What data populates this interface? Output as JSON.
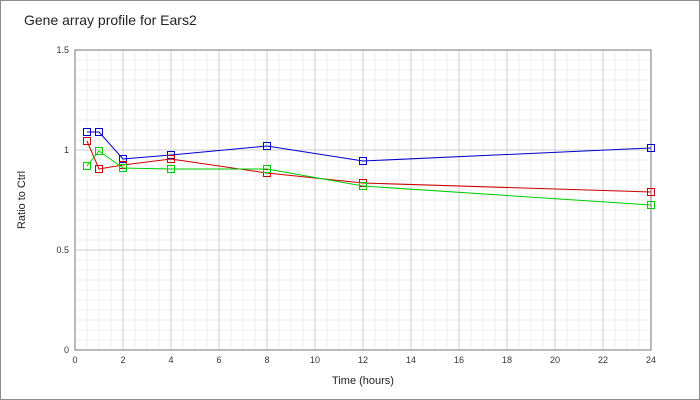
{
  "chart_data": {
    "type": "line",
    "title": "Gene array profile for Ears2",
    "xlabel": "Time (hours)",
    "ylabel": "Ratio to Ctrl",
    "xlim": [
      0,
      24
    ],
    "ylim": [
      0,
      1.5
    ],
    "x_ticks": [
      "0",
      "2",
      "4",
      "6",
      "8",
      "10",
      "12",
      "14",
      "16",
      "18",
      "20",
      "22",
      "24"
    ],
    "y_ticks": [
      "0",
      "0.5",
      "1",
      "1.5"
    ],
    "grid": true,
    "marker": "square",
    "series": [
      {
        "color": "#0000cc",
        "x": [
          0.5,
          1,
          2,
          4,
          8,
          12,
          24
        ],
        "values": [
          1.09,
          1.09,
          0.955,
          0.975,
          1.02,
          0.945,
          1.01
        ]
      },
      {
        "color": "#cc0000",
        "x": [
          0.5,
          1,
          2,
          4,
          8,
          12,
          24
        ],
        "values": [
          1.045,
          0.905,
          0.925,
          0.955,
          0.885,
          0.835,
          0.79
        ]
      },
      {
        "color": "#00cc00",
        "x": [
          0.5,
          1,
          2,
          4,
          8,
          12,
          24
        ],
        "values": [
          0.92,
          0.995,
          0.91,
          0.905,
          0.905,
          0.82,
          0.725
        ]
      }
    ]
  }
}
